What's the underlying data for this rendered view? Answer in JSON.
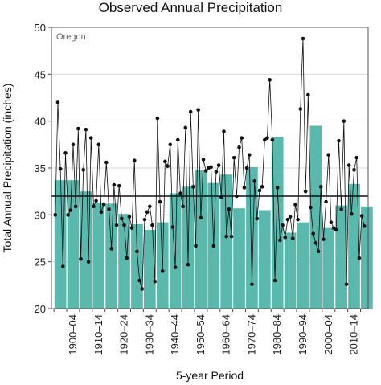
{
  "chart_data": {
    "type": "bar+line",
    "title": "Observed Annual Precipitation",
    "region_label": "Oregon",
    "xlabel": "5-year Period",
    "ylabel": "Total Annual Precipitation (inches)",
    "ylim": [
      20,
      50
    ],
    "yticks": [
      20,
      25,
      30,
      35,
      40,
      45,
      50
    ],
    "x_tick_labels": [
      "1900–04",
      "1910–14",
      "1920–24",
      "1930–34",
      "1940–44",
      "1950–54",
      "1960–64",
      "1970–74",
      "1980–84",
      "1990–94",
      "2000–04",
      "2010–14"
    ],
    "reference_line": 32.0,
    "bar_color": "#5bb8ad",
    "line_color": "#111111",
    "periods": [
      "1895–99",
      "1900–04",
      "1905–09",
      "1910–14",
      "1915–19",
      "1920–24",
      "1925–29",
      "1930–34",
      "1935–39",
      "1940–44",
      "1945–49",
      "1950–54",
      "1955–59",
      "1960–64",
      "1965–69",
      "1970–74",
      "1975–79",
      "1980–84",
      "1985–89",
      "1990–94",
      "1995–99",
      "2000–04",
      "2005–09",
      "2010–14",
      "2015–19"
    ],
    "bar_values": [
      33.7,
      33.7,
      32.5,
      31.3,
      31.2,
      30.1,
      29.0,
      28.4,
      29.2,
      32.3,
      33.0,
      34.8,
      33.4,
      34.3,
      30.7,
      35.1,
      30.5,
      38.3,
      28.1,
      29.2,
      39.5,
      28.6,
      31.0,
      33.3,
      30.9
    ],
    "annual": {
      "start_year": 1895,
      "values": [
        30.0,
        42.0,
        34.9,
        24.5,
        36.6,
        30.0,
        30.5,
        37.5,
        30.9,
        39.2,
        25.3,
        34.8,
        39.1,
        25.0,
        38.2,
        30.9,
        31.5,
        37.5,
        30.3,
        31.1,
        35.6,
        30.6,
        26.4,
        33.2,
        28.9,
        33.1,
        29.6,
        28.9,
        25.4,
        29.8,
        28.6,
        35.8,
        26.1,
        23.0,
        22.1,
        29.5,
        30.3,
        30.9,
        28.9,
        22.9,
        40.3,
        31.4,
        24.0,
        35.7,
        35.2,
        37.5,
        28.7,
        24.4,
        38.0,
        32.3,
        30.9,
        39.3,
        24.7,
        41.0,
        33.0,
        26.7,
        41.2,
        29.7,
        35.9,
        34.7,
        35.0,
        35.1,
        26.7,
        34.6,
        35.3,
        31.9,
        38.9,
        27.7,
        30.6,
        27.7,
        36.1,
        32.0,
        37.2,
        38.2,
        32.9,
        35.0,
        36.4,
        22.6,
        33.6,
        29.6,
        32.6,
        33.0,
        38.0,
        38.2,
        44.4,
        38.0,
        23.0,
        32.9,
        27.3,
        28.9,
        27.6,
        29.5,
        29.8,
        27.5,
        31.1,
        29.5,
        41.3,
        48.8,
        32.5,
        42.8,
        30.8,
        28.0,
        27.0,
        26.1,
        33.0,
        27.4,
        31.4,
        36.4,
        29.2,
        28.6,
        28.4,
        37.9,
        30.6,
        40.0,
        22.6,
        35.3,
        30.1,
        34.8,
        36.1,
        25.4,
        29.9,
        28.8
      ]
    }
  }
}
